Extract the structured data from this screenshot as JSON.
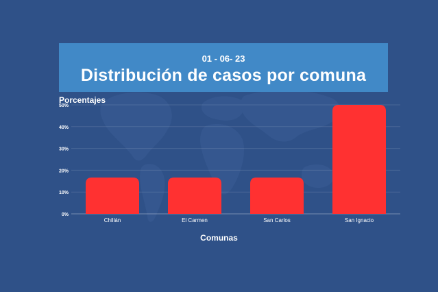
{
  "header": {
    "date": "01 - 06- 23",
    "title": "Distribución de casos por comuna"
  },
  "colors": {
    "background": "#2f5188",
    "banner": "#4189c7",
    "bar": "#ff3131",
    "text": "#ffffff"
  },
  "chart_data": {
    "type": "bar",
    "title": "Distribución de casos por comuna",
    "xlabel": "Comunas",
    "ylabel": "Porcentajes",
    "categories": [
      "Chillán",
      "El Carmen",
      "San Carlos",
      "San Ignacio"
    ],
    "values": [
      16.67,
      16.67,
      16.67,
      50
    ],
    "ylim": [
      0,
      50
    ],
    "yticks": [
      0,
      10,
      20,
      30,
      40,
      50
    ],
    "ytick_labels": [
      "0%",
      "10%",
      "20%",
      "30%",
      "40%",
      "50%"
    ],
    "grid": true,
    "legend": "none"
  }
}
